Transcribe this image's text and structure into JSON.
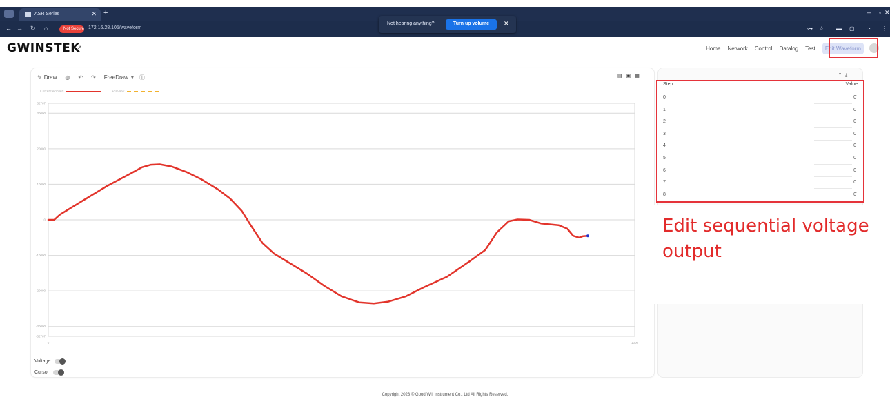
{
  "browser": {
    "tab_title": "ASR Series",
    "not_secure": "Not Secure",
    "url": "172.16.28.105/waveform",
    "toast_message": "Not hearing anything?",
    "toast_button": "Turn up volume"
  },
  "header": {
    "logo": "GWINSTEK",
    "nav": [
      "Home",
      "Network",
      "Control",
      "Datalog",
      "Test",
      "Edit Waveform"
    ]
  },
  "toolbar": {
    "draw": "Draw",
    "mode": "FreeDraw"
  },
  "legend": {
    "applied": "Current Applied",
    "preview": "Preview"
  },
  "chart_data": {
    "type": "line",
    "yticks": [
      "32767",
      "30000",
      "20000",
      "10000",
      "0",
      "-10000",
      "-20000",
      "-30000",
      "-32767"
    ],
    "xticks": [
      "0",
      "1000"
    ],
    "xlim": [
      0,
      1000
    ],
    "ylim": [
      -32767,
      32767
    ],
    "grid": true,
    "series": [
      {
        "color": "#e2342b",
        "points": [
          [
            0,
            0
          ],
          [
            10,
            0
          ],
          [
            20,
            1500
          ],
          [
            60,
            5500
          ],
          [
            100,
            9500
          ],
          [
            140,
            13000
          ],
          [
            160,
            14800
          ],
          [
            175,
            15500
          ],
          [
            190,
            15600
          ],
          [
            210,
            15000
          ],
          [
            235,
            13500
          ],
          [
            260,
            11500
          ],
          [
            290,
            8500
          ],
          [
            310,
            6000
          ],
          [
            330,
            2500
          ],
          [
            345,
            -1500
          ],
          [
            365,
            -6500
          ],
          [
            385,
            -9500
          ],
          [
            410,
            -12000
          ],
          [
            440,
            -15000
          ],
          [
            470,
            -18500
          ],
          [
            500,
            -21500
          ],
          [
            530,
            -23200
          ],
          [
            555,
            -23500
          ],
          [
            580,
            -23000
          ],
          [
            610,
            -21500
          ],
          [
            640,
            -19000
          ],
          [
            680,
            -16000
          ],
          [
            720,
            -11500
          ],
          [
            745,
            -8500
          ],
          [
            765,
            -3500
          ],
          [
            785,
            -400
          ],
          [
            800,
            100
          ],
          [
            820,
            0
          ],
          [
            840,
            -1000
          ],
          [
            870,
            -1500
          ],
          [
            885,
            -2500
          ],
          [
            895,
            -4500
          ],
          [
            905,
            -5000
          ],
          [
            912,
            -4600
          ],
          [
            920,
            -4500
          ]
        ]
      }
    ]
  },
  "controls": {
    "voltage": "Voltage",
    "cursor": "Cursor"
  },
  "table": {
    "header_step": "Step",
    "header_value": "Value",
    "rows": [
      {
        "step": "0",
        "value": "0"
      },
      {
        "step": "1",
        "value": "0"
      },
      {
        "step": "2",
        "value": "0"
      },
      {
        "step": "3",
        "value": "0"
      },
      {
        "step": "4",
        "value": "0"
      },
      {
        "step": "5",
        "value": "0"
      },
      {
        "step": "6",
        "value": "0"
      },
      {
        "step": "7",
        "value": "0"
      },
      {
        "step": "8",
        "value": "0"
      }
    ]
  },
  "annotation": "Edit sequential voltage output",
  "footer": "Copyright 2023 © Good Will Instrument Co., Ltd All Rights Reserved."
}
